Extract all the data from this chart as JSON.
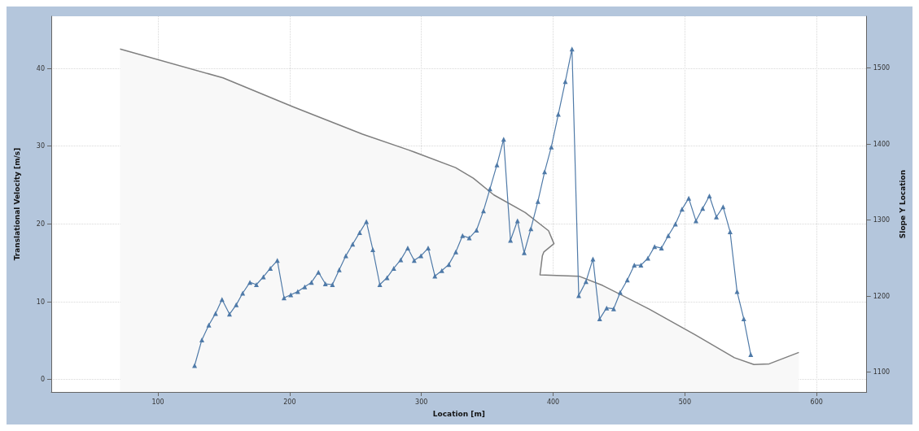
{
  "chart_data": {
    "type": "line",
    "xlabel": "Location [m]",
    "ylabel": "Translational Velocity [m/s]",
    "y2label": "Slope Y Location",
    "xlim": [
      19,
      638
    ],
    "xticks": [
      100,
      200,
      300,
      400,
      500,
      600
    ],
    "ylim": [
      -1.6,
      46.7
    ],
    "yticks": [
      0,
      10,
      20,
      30,
      40
    ],
    "y2lim": [
      1074,
      1568
    ],
    "y2ticks": [
      1100,
      1200,
      1300,
      1400,
      1500
    ],
    "grid": true,
    "series": [
      {
        "type": "area",
        "axis": "y2",
        "color": "#7f7f7f",
        "marker": "none",
        "x": [
          71.2,
          149.4,
          202.4,
          255.3,
          290.6,
          325.9,
          339.4,
          355,
          378.8,
          396.5,
          400.6,
          392.9,
          391.8,
          390,
          420,
          437.6,
          472.9,
          508,
          537.6,
          552.4,
          564,
          586.5
        ],
        "values": [
          1525,
          1487,
          1449,
          1413,
          1392,
          1369,
          1355,
          1333,
          1310,
          1286,
          1269,
          1258,
          1253,
          1228,
          1226,
          1214,
          1183,
          1149,
          1119,
          1110,
          1111,
          1126
        ]
      },
      {
        "axis": "y",
        "color": "#4f7aa8",
        "marker": "triangle",
        "x": [
          127.8,
          133.3,
          138.6,
          143.7,
          148.6,
          154.3,
          159.4,
          164.3,
          169.8,
          174.7,
          180,
          185.3,
          190.6,
          195.7,
          200.8,
          206.1,
          211.4,
          216.5,
          221.8,
          227.1,
          232.4,
          237.6,
          242.6,
          247.8,
          253.1,
          258.2,
          263.1,
          268.4,
          273.9,
          279,
          284.3,
          289.6,
          294.5,
          299.6,
          305.1,
          310.2,
          315.5,
          320.8,
          326.1,
          331.2,
          336.3,
          341.8,
          347.1,
          352,
          357.3,
          362.4,
          367.6,
          372.9,
          378,
          383.1,
          388.4,
          393.5,
          398.6,
          403.9,
          409.2,
          414.3,
          419.4,
          424.9,
          430.2,
          435.3,
          440.6,
          445.9,
          450.9,
          456.3,
          461.6,
          466.6,
          471.9,
          477,
          482.2,
          487.4,
          492.8,
          497.8,
          502.9,
          508.4,
          513.5,
          518.6,
          523.9,
          529,
          534.3,
          539.6,
          544.7,
          550
        ],
        "values": [
          1.8,
          5.1,
          7.0,
          8.5,
          10.3,
          8.4,
          9.6,
          11.1,
          12.5,
          12.2,
          13.2,
          14.3,
          15.3,
          10.5,
          10.9,
          11.3,
          11.9,
          12.5,
          13.8,
          12.3,
          12.2,
          14.1,
          15.9,
          17.4,
          18.9,
          20.3,
          16.7,
          12.2,
          13.1,
          14.3,
          15.4,
          16.9,
          15.3,
          15.9,
          16.9,
          13.3,
          14.0,
          14.8,
          16.4,
          18.5,
          18.2,
          19.2,
          21.7,
          24.5,
          27.6,
          30.9,
          17.9,
          20.4,
          16.3,
          19.4,
          22.9,
          26.7,
          29.9,
          34.1,
          38.3,
          42.5,
          10.8,
          12.6,
          15.5,
          7.8,
          9.2,
          9.1,
          11.2,
          12.8,
          14.7,
          14.7,
          15.6,
          17.1,
          16.9,
          18.5,
          20.0,
          21.9,
          23.3,
          20.4,
          22.0,
          23.6,
          20.9,
          22.2,
          19.0,
          11.3,
          7.8,
          3.2
        ]
      }
    ]
  }
}
